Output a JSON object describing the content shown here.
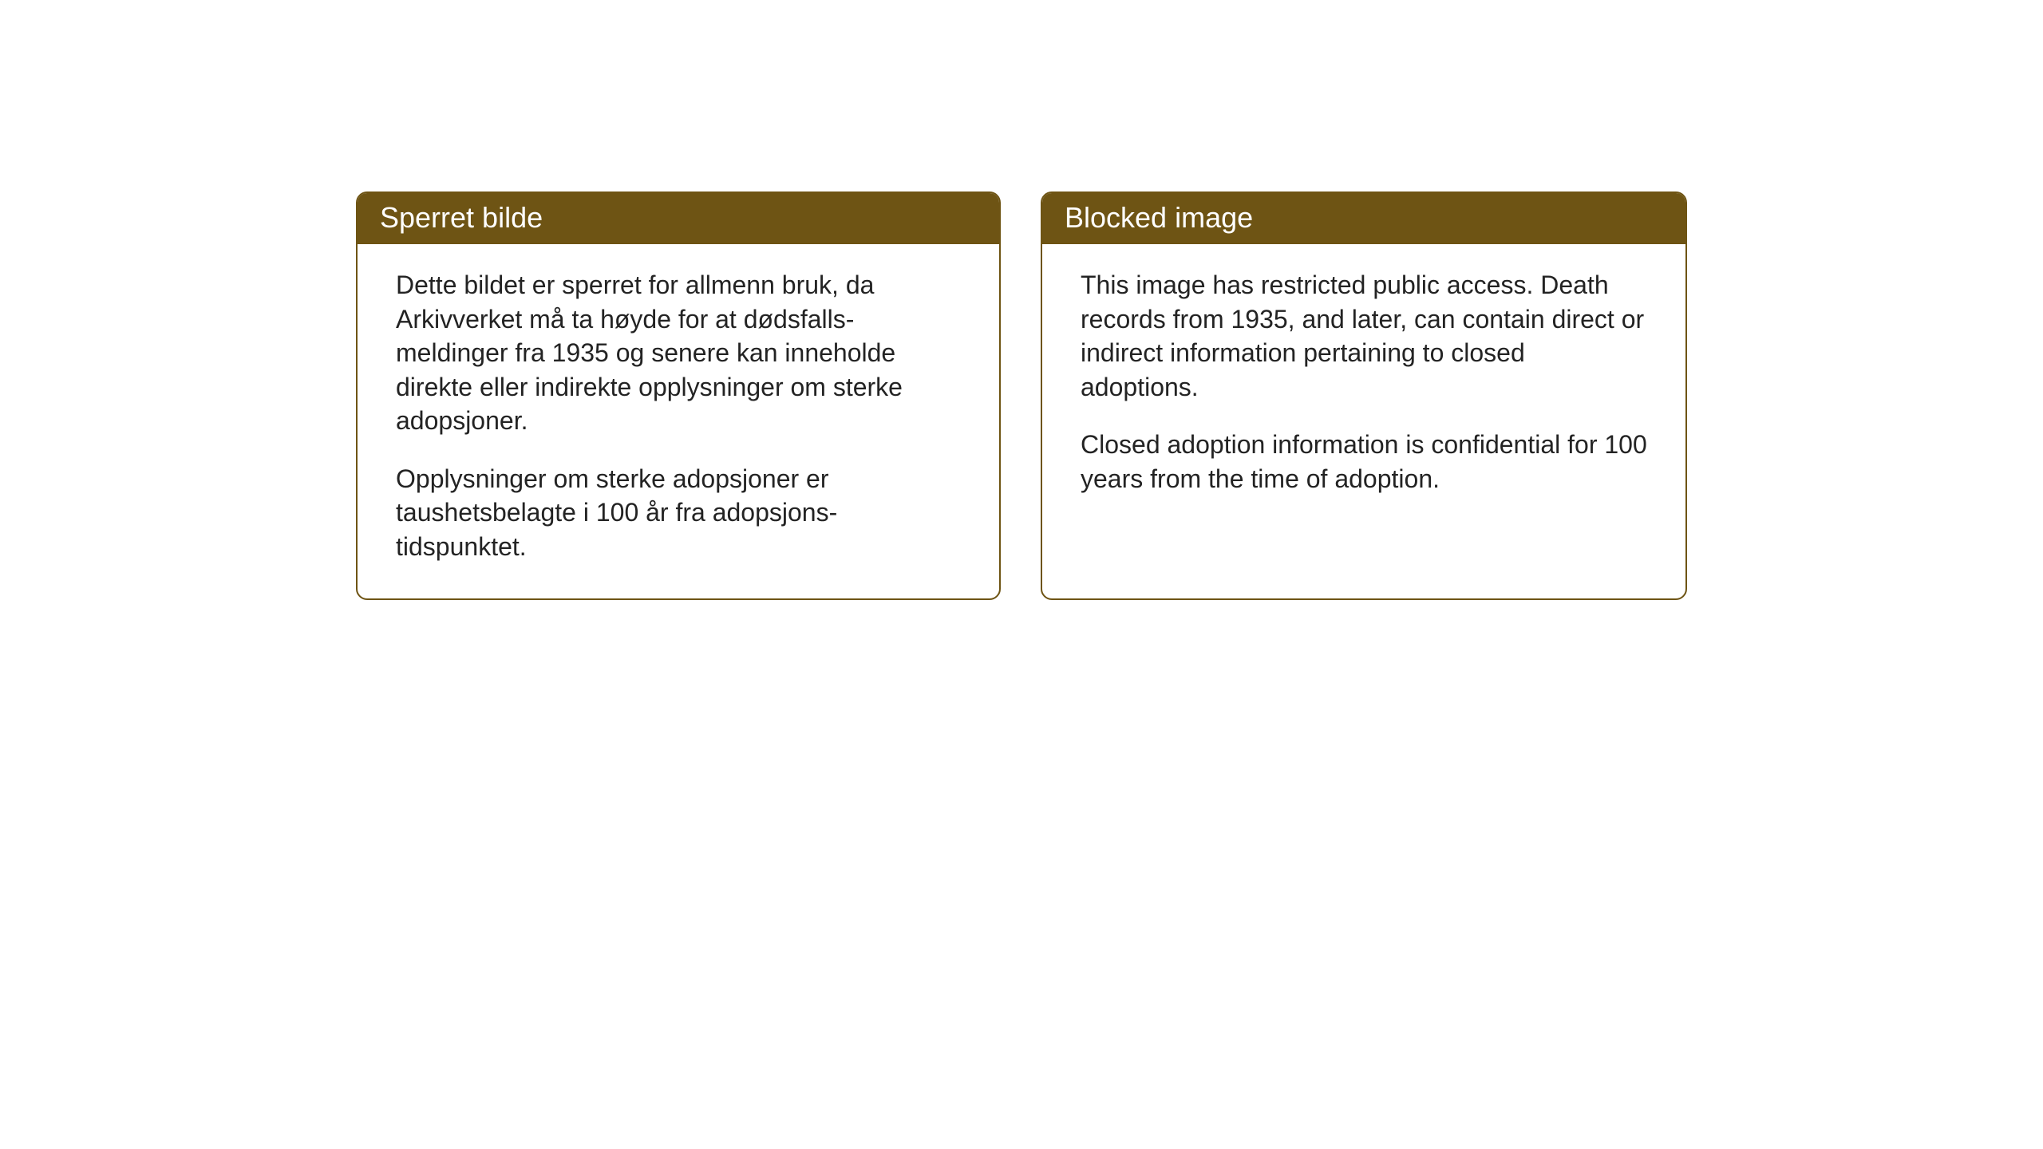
{
  "norwegian_card": {
    "title": "Sperret bilde",
    "paragraph1": "Dette bildet er sperret for allmenn bruk, da Arkivverket må ta høyde for at dødsfalls-meldinger fra 1935 og senere kan inneholde direkte eller indirekte opplysninger om sterke adopsjoner.",
    "paragraph2": "Opplysninger om sterke adopsjoner er taushetsbelagte i 100 år fra adopsjons-tidspunktet."
  },
  "english_card": {
    "title": "Blocked image",
    "paragraph1": "This image has restricted public access. Death records from 1935, and later, can contain direct or indirect information pertaining to closed adoptions.",
    "paragraph2": "Closed adoption information is confidential for 100 years from the time of adoption."
  },
  "styling": {
    "header_bg_color": "#6e5414",
    "header_text_color": "#ffffff",
    "border_color": "#6e5414",
    "body_text_color": "#232323",
    "card_bg_color": "#ffffff",
    "page_bg_color": "#ffffff",
    "header_font_size": 36,
    "body_font_size": 32,
    "border_radius": 14,
    "border_width": 2
  }
}
